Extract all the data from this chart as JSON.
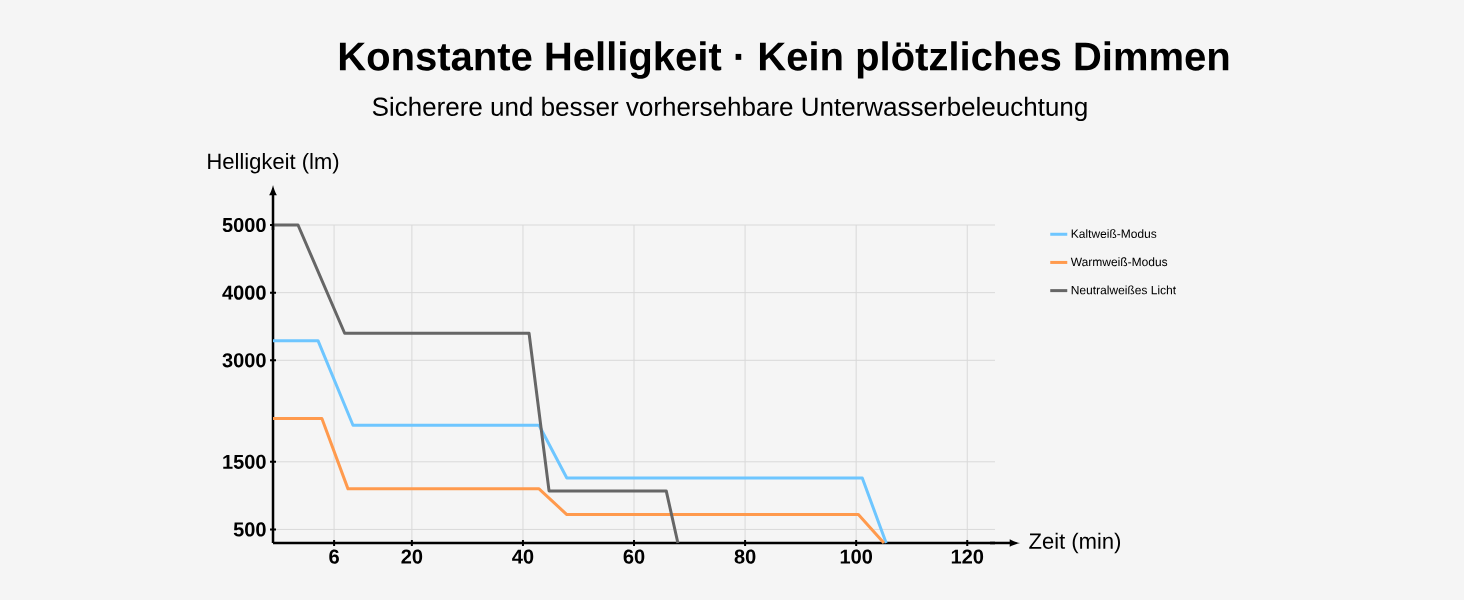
{
  "chart_data": {
    "type": "line",
    "title": "Konstante Helligkeit · Kein plötzliches Dimmen",
    "subtitle": "Sicherere und besser vorhersehbare Unterwasserbeleuchtung",
    "xlabel": "Zeit (min)",
    "ylabel": "Helligkeit (lm)",
    "xlim": [
      -5,
      125
    ],
    "ylim": [
      300,
      5000
    ],
    "xticks": [
      6,
      20,
      40,
      60,
      80,
      100,
      120
    ],
    "yticks": [
      500,
      1500,
      3000,
      4000,
      5000
    ],
    "grid": true,
    "legend": "top right",
    "marker": "none",
    "line_style": "solid",
    "series": [
      {
        "name": "Kaltweiß-Modus",
        "color": "#6ec6ff",
        "x": [
          -5,
          3.1,
          9.4,
          42.9,
          47.9,
          101.1,
          105.4
        ],
        "values": [
          3290,
          3290,
          2040,
          2040,
          1260,
          1260,
          300
        ]
      },
      {
        "name": "Warmweiß-Modus",
        "color": "#ff9a4d",
        "x": [
          -5,
          3.8,
          8.5,
          42.9,
          47.9,
          100.4,
          105.0
        ],
        "values": [
          2140,
          2140,
          1100,
          1100,
          720,
          720,
          300
        ]
      },
      {
        "name": "Neutralweißes Licht",
        "color": "#666666",
        "x": [
          -5,
          -0.5,
          7.9,
          41.1,
          44.7,
          65.8,
          67.9
        ],
        "values": [
          5000,
          5000,
          3400,
          3400,
          1070,
          1070,
          300
        ]
      }
    ]
  }
}
